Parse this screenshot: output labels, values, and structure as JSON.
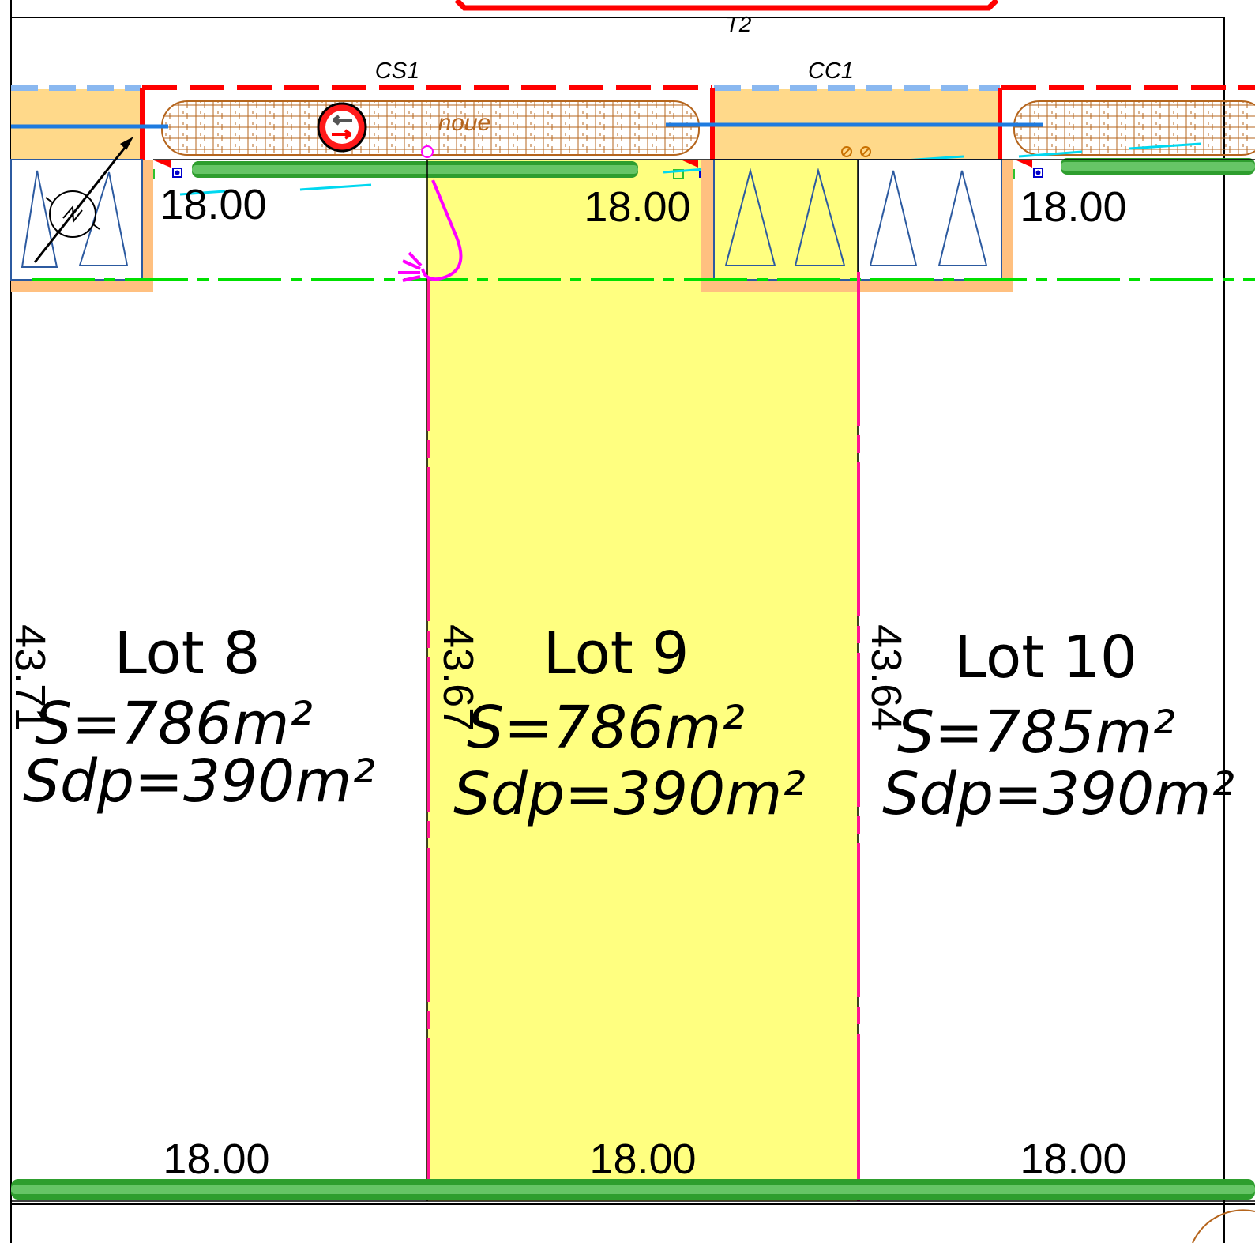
{
  "plan": {
    "road_label": "T2",
    "manhole_labels": {
      "cs": "CS1",
      "cc": "CC1"
    },
    "swale_label": "noue",
    "lots": [
      {
        "name": "Lot 8",
        "area": "S=786m²",
        "floor_area": "Sdp=390m²",
        "side_length": "43.71",
        "front_width": "18.00",
        "back_width": "18.00",
        "highlighted": false
      },
      {
        "name": "Lot 9",
        "area": "S=786m²",
        "floor_area": "Sdp=390m²",
        "side_length": "43.67",
        "front_width": "18.00",
        "back_width": "18.00",
        "highlighted": true
      },
      {
        "name": "Lot 10",
        "area": "S=785m²",
        "floor_area": "Sdp=390m²",
        "side_length": "43.64",
        "front_width": "18.00",
        "back_width": "18.00",
        "highlighted": false
      }
    ],
    "icons": [
      "no-entry-sign-icon",
      "north-arrow-icon",
      "tree-icon",
      "hedge-icon",
      "access-arrow-icon"
    ],
    "colors": {
      "highlight_lot": "#ffff80",
      "lot_boundary": "#ff1493",
      "road_boundary": "#ff0000",
      "setback_line": "#00e000",
      "water_line": "#1e7be0",
      "parking": "#ffd98a",
      "swale_outline": "#b5651d",
      "hedge": "#2e9e2e",
      "access": "#ff00ff"
    }
  }
}
